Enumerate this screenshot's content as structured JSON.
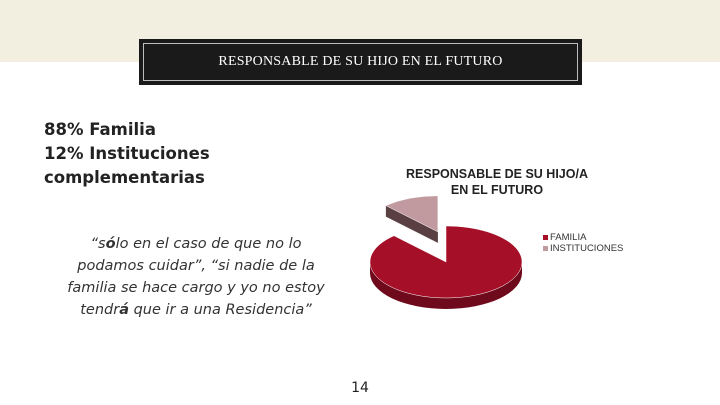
{
  "slide": {
    "title": "RESPONSABLE DE SU HIJO EN EL FUTURO",
    "stats": [
      "88% Familia",
      "12%  Instituciones",
      "complementarias"
    ],
    "quote": {
      "line1_a": "“s",
      "line1_b": "ó",
      "line1_c": "lo en el caso de que no lo",
      "line2": "podamos cuidar”, “si nadie de la",
      "line3": "familia se hace cargo y yo no estoy",
      "line4_a": "tendr",
      "line4_b": "á",
      "line4_c": " que ir a una Residencia”"
    },
    "page_number": "14",
    "colors": {
      "top_band": "#f2efe0",
      "title_bg": "#1a1a1a"
    }
  },
  "chart_data": {
    "type": "pie",
    "three_d": true,
    "title": "RESPONSABLE DE SU HIJO/A EN EL FUTURO",
    "title_lines": [
      "RESPONSABLE DE SU HIJO/A",
      "EN EL FUTURO"
    ],
    "categories": [
      "FAMILIA",
      "INSTITUCIONES"
    ],
    "values": [
      88,
      12
    ],
    "colors": [
      "#a50f27",
      "#c09a9f"
    ],
    "side_colors": [
      "#6e0a1c",
      "#5a4043"
    ],
    "exploded": "INSTITUCIONES",
    "legend_position": "right"
  }
}
